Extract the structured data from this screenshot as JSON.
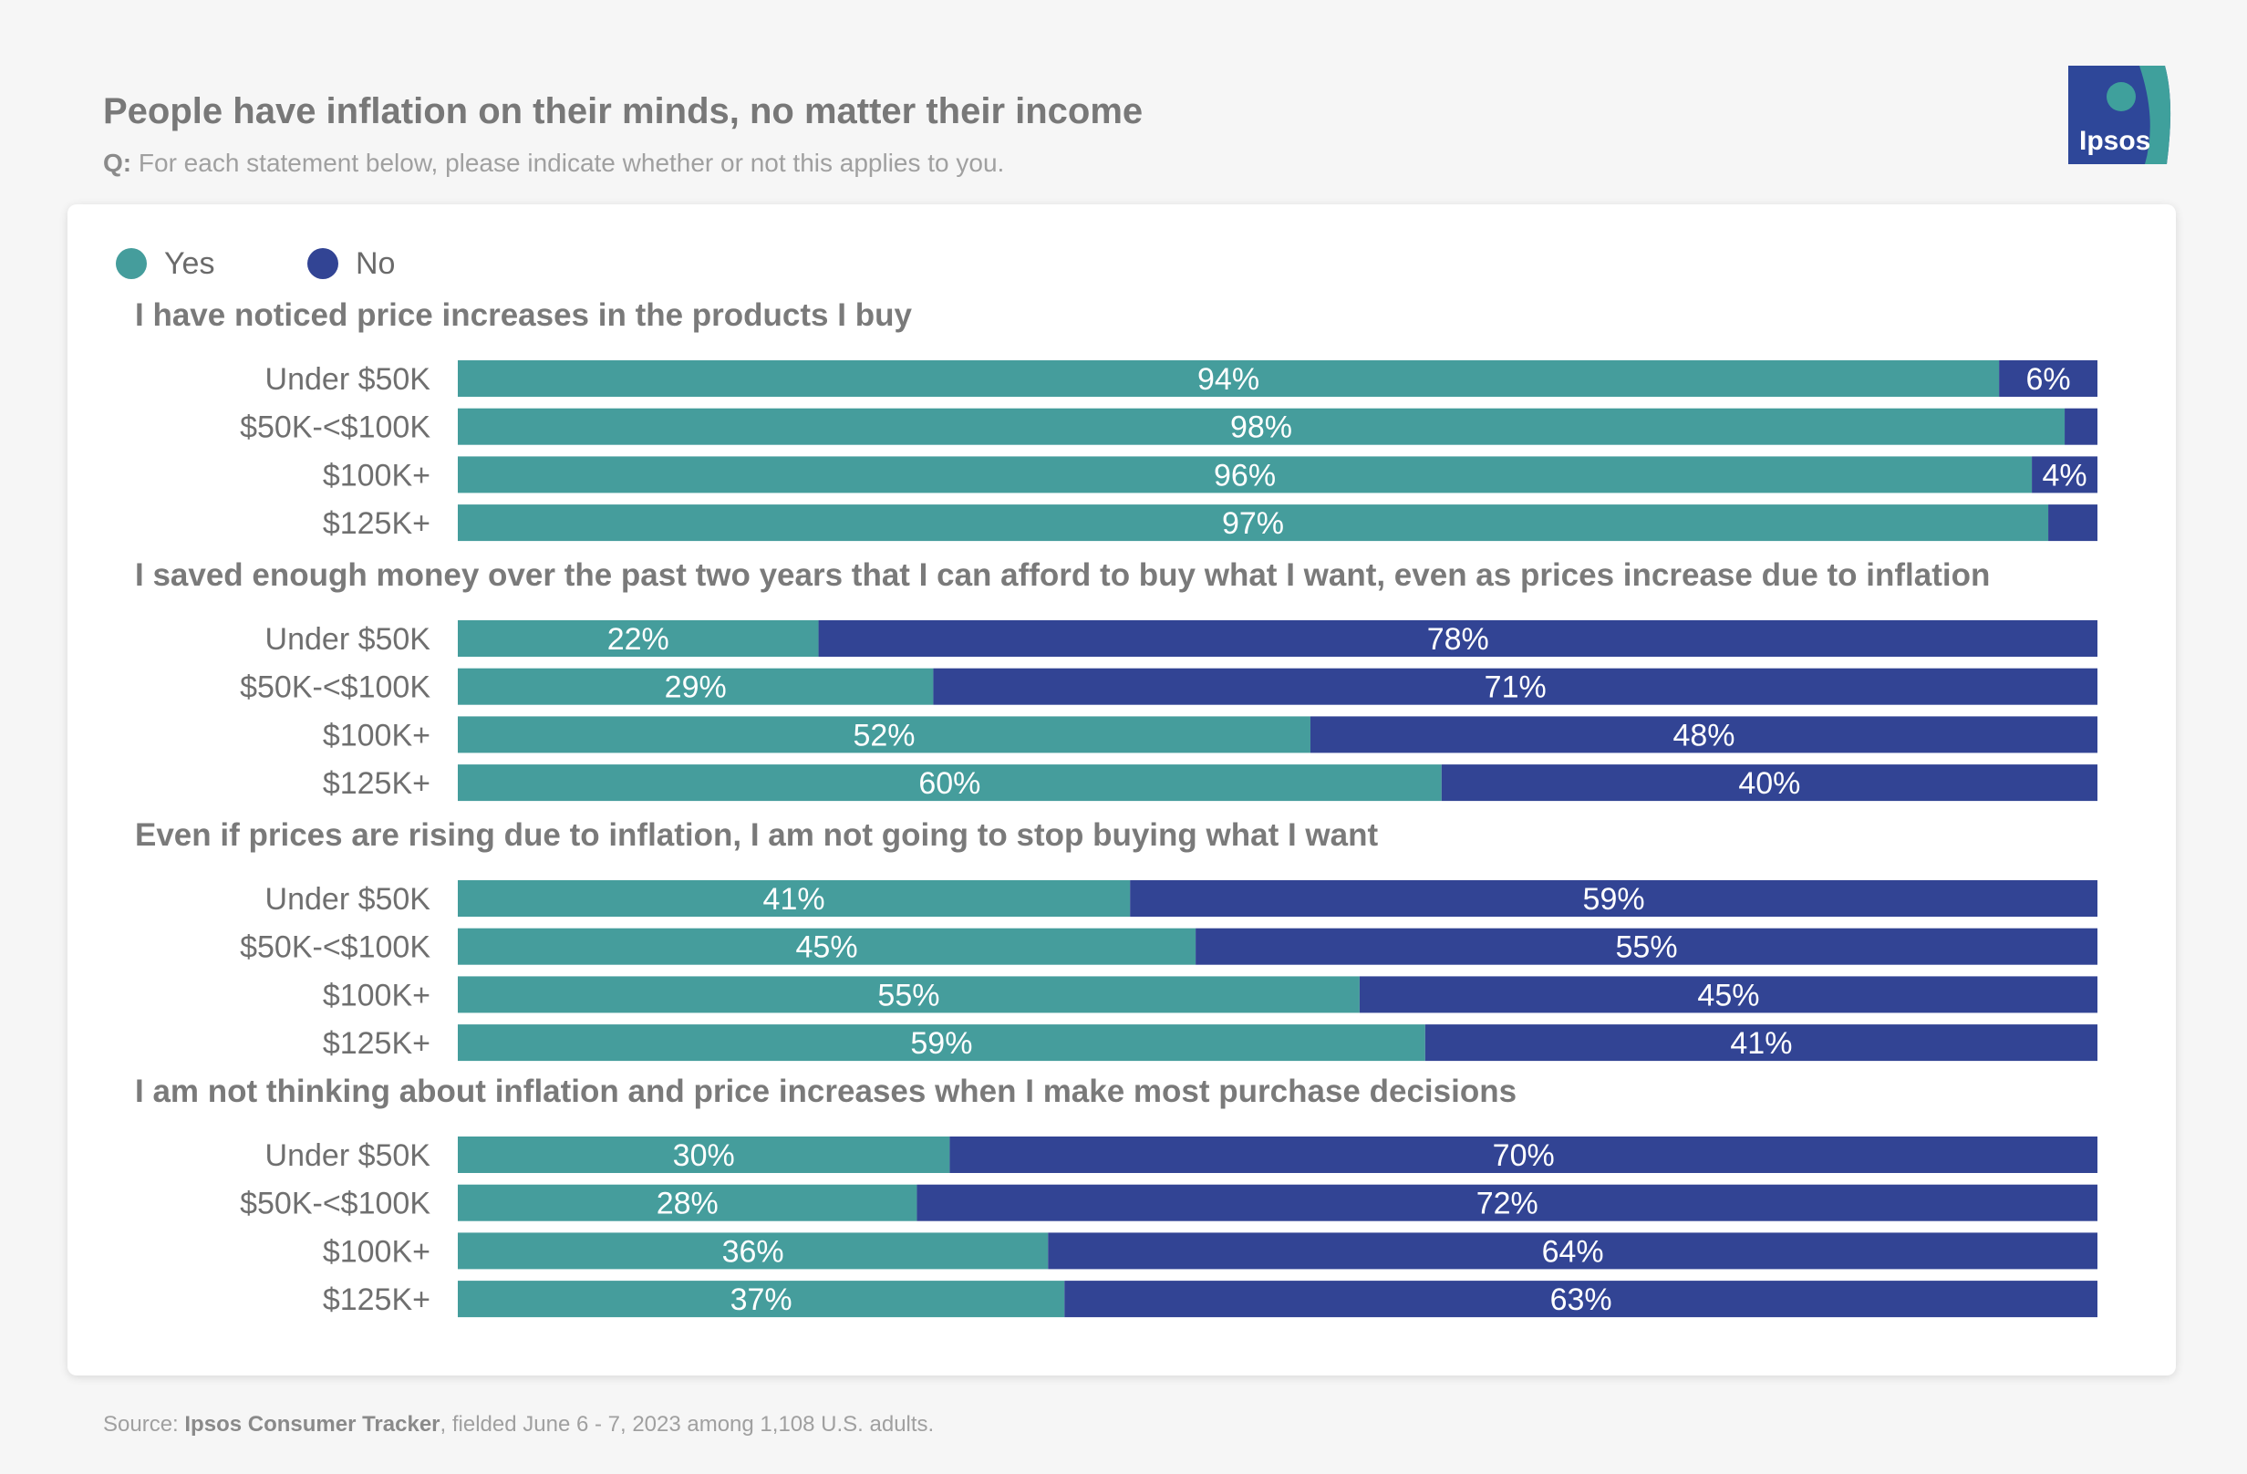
{
  "header": {
    "title": "People have inflation on their minds, no matter their income",
    "question_prefix": "Q:",
    "question_text": "For each statement below, please indicate whether or not this applies to you."
  },
  "logo": {
    "text": "Ipsos",
    "colors": {
      "bg": "#2e4799",
      "accent": "#3fa09c"
    }
  },
  "legend": [
    {
      "label": "Yes",
      "color": "#459d9c"
    },
    {
      "label": "No",
      "color": "#324494"
    }
  ],
  "chart_data": {
    "type": "bar",
    "orientation": "horizontal",
    "stacked": true,
    "xlim": [
      0,
      100
    ],
    "unit": "%",
    "series_names": [
      "Yes",
      "No"
    ],
    "groups": [
      {
        "statement": "I have noticed price increases in the products I buy",
        "rows": [
          {
            "label": "Under $50K",
            "yes": 94,
            "no": 6,
            "yes_label": "94%",
            "no_label": "6%"
          },
          {
            "label": "$50K-<$100K",
            "yes": 98,
            "no": 2,
            "yes_label": "98%",
            "no_label": ""
          },
          {
            "label": "$100K+",
            "yes": 96,
            "no": 4,
            "yes_label": "96%",
            "no_label": "4%"
          },
          {
            "label": "$125K+",
            "yes": 97,
            "no": 3,
            "yes_label": "97%",
            "no_label": ""
          }
        ]
      },
      {
        "statement": "I saved enough money over the past two years that I can afford to buy what I want, even as prices increase due to inflation",
        "rows": [
          {
            "label": "Under $50K",
            "yes": 22,
            "no": 78,
            "yes_label": "22%",
            "no_label": "78%"
          },
          {
            "label": "$50K-<$100K",
            "yes": 29,
            "no": 71,
            "yes_label": "29%",
            "no_label": "71%"
          },
          {
            "label": "$100K+",
            "yes": 52,
            "no": 48,
            "yes_label": "52%",
            "no_label": "48%"
          },
          {
            "label": "$125K+",
            "yes": 60,
            "no": 40,
            "yes_label": "60%",
            "no_label": "40%"
          }
        ]
      },
      {
        "statement": "Even if prices are rising due to inflation, I am not going to stop buying what I want",
        "rows": [
          {
            "label": "Under $50K",
            "yes": 41,
            "no": 59,
            "yes_label": "41%",
            "no_label": "59%"
          },
          {
            "label": "$50K-<$100K",
            "yes": 45,
            "no": 55,
            "yes_label": "45%",
            "no_label": "55%"
          },
          {
            "label": "$100K+",
            "yes": 55,
            "no": 45,
            "yes_label": "55%",
            "no_label": "45%"
          },
          {
            "label": "$125K+",
            "yes": 59,
            "no": 41,
            "yes_label": "59%",
            "no_label": "41%"
          }
        ]
      },
      {
        "statement": "I am not thinking about inflation and price increases when I make most purchase decisions",
        "rows": [
          {
            "label": "Under $50K",
            "yes": 30,
            "no": 70,
            "yes_label": "30%",
            "no_label": "70%"
          },
          {
            "label": "$50K-<$100K",
            "yes": 28,
            "no": 72,
            "yes_label": "28%",
            "no_label": "72%"
          },
          {
            "label": "$100K+",
            "yes": 36,
            "no": 64,
            "yes_label": "36%",
            "no_label": "64%"
          },
          {
            "label": "$125K+",
            "yes": 37,
            "no": 63,
            "yes_label": "37%",
            "no_label": "63%"
          }
        ]
      }
    ]
  },
  "footer": {
    "prefix": "Source:",
    "source_name": "Ipsos Consumer Tracker",
    "suffix": ", fielded June 6 - 7, 2023 among 1,108 U.S. adults."
  }
}
